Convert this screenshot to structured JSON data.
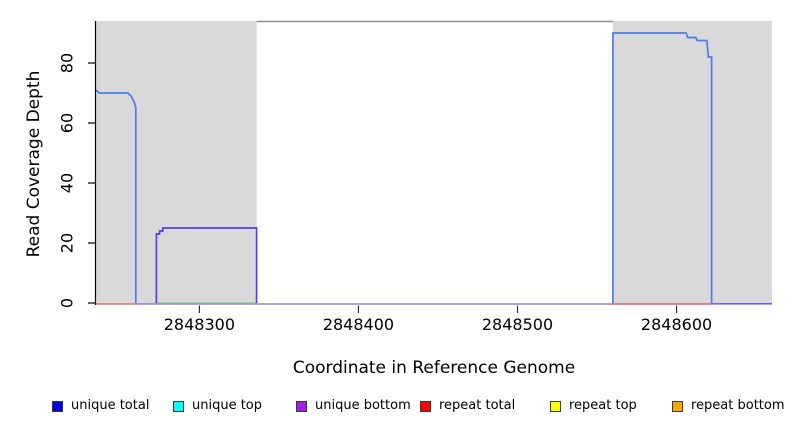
{
  "chart_data": {
    "type": "line",
    "xlabel": "Coordinate in Reference Genome",
    "ylabel": "Read Coverage Depth",
    "xlim": [
      2848235,
      2848660
    ],
    "ylim": [
      0,
      94
    ],
    "x_ticks": [
      2848300,
      2848400,
      2848500,
      2848600
    ],
    "y_ticks": [
      0,
      20,
      40,
      60,
      80
    ],
    "grid": false,
    "legend_position": "bottom",
    "background_color": "#ffffff",
    "shaded_regions": [
      {
        "from": 2848235,
        "to": 2848336,
        "color": "#d9d9d9"
      },
      {
        "from": 2848560,
        "to": 2848660,
        "color": "#d9d9d9"
      }
    ],
    "clipped_top_segment": {
      "from": 2848336,
      "to": 2848560,
      "value": 94,
      "color": "#8f8f8f"
    },
    "series": [
      {
        "name": "unique total",
        "color": "#4a7de8",
        "paths": [
          [
            [
              2848235,
              71
            ],
            [
              2848237,
              70
            ],
            [
              2848255,
              70
            ],
            [
              2848257,
              69
            ],
            [
              2848258,
              68
            ],
            [
              2848259,
              67
            ],
            [
              2848260,
              65
            ],
            [
              2848260,
              0
            ]
          ],
          [
            [
              2848560,
              0
            ],
            [
              2848560,
              90
            ],
            [
              2848606,
              90
            ],
            [
              2848607,
              88.5
            ],
            [
              2848612,
              88.5
            ],
            [
              2848613,
              87.5
            ],
            [
              2848619,
              87.5
            ],
            [
              2848620,
              82
            ],
            [
              2848622,
              82
            ],
            [
              2848622,
              0
            ]
          ]
        ]
      },
      {
        "name": "unique bottom",
        "color": "#5a3bee",
        "paths": [
          [
            [
              2848273,
              0
            ],
            [
              2848273,
              23
            ],
            [
              2848275,
              23
            ],
            [
              2848275,
              24
            ],
            [
              2848277,
              24
            ],
            [
              2848277,
              25
            ],
            [
              2848336,
              25
            ],
            [
              2848336,
              0
            ]
          ]
        ]
      }
    ],
    "baseline_segments": [
      {
        "from": 2848260,
        "to": 2848660,
        "color": "#7b68f2",
        "offset": 1
      },
      {
        "from": 2848235,
        "to": 2848262,
        "color": "#e8585a",
        "offset": 1
      },
      {
        "from": 2848558,
        "to": 2848623,
        "color": "#e8585a",
        "offset": 1
      },
      {
        "from": 2848272,
        "to": 2848336,
        "color": "#8ccf8c",
        "offset": 0
      },
      {
        "from": 2848622,
        "to": 2848660,
        "color": "#6f62f5",
        "offset": 0.6
      }
    ]
  },
  "legend": {
    "items": [
      {
        "label": "unique total",
        "color": "#0000ee"
      },
      {
        "label": "unique top",
        "color": "#00ffff"
      },
      {
        "label": "unique bottom",
        "color": "#a020f0"
      },
      {
        "label": "repeat total",
        "color": "#ff0000"
      },
      {
        "label": "repeat top",
        "color": "#ffff00"
      },
      {
        "label": "repeat bottom",
        "color": "#ffa500"
      }
    ]
  }
}
